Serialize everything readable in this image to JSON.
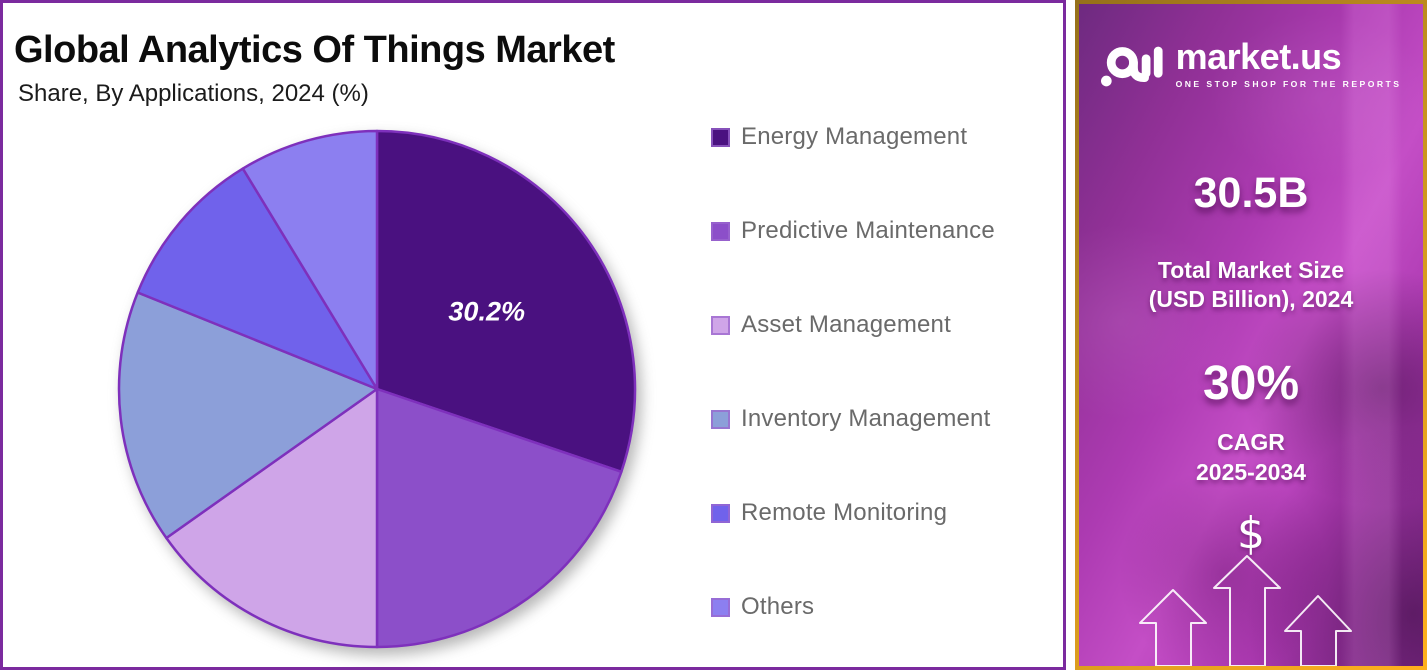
{
  "header": {
    "title": "Global Analytics Of Things Market",
    "subtitle": "Share, By Applications, 2024 (%)"
  },
  "chart_data": {
    "type": "pie",
    "title": "Global Analytics Of Things Market Share, By Applications, 2024 (%)",
    "unit": "%",
    "start_angle": "top",
    "direction": "clockwise",
    "legend_position": "right",
    "segments": [
      {
        "name": "Energy Management",
        "value": 30.2,
        "color": "#4A1180",
        "label": "30.2%"
      },
      {
        "name": "Predictive Maintenance",
        "value": 19.8,
        "color": "#8C4FC9",
        "label": ""
      },
      {
        "name": "Asset Management",
        "value": 15.2,
        "color": "#CFA5E8",
        "label": ""
      },
      {
        "name": "Inventory Management",
        "value": 15.9,
        "color": "#8C9FD9",
        "label": ""
      },
      {
        "name": "Remote Monitoring",
        "value": 10.2,
        "color": "#7062EB",
        "label": ""
      },
      {
        "name": "Others",
        "value": 8.7,
        "color": "#8C7FF0",
        "label": ""
      }
    ]
  },
  "brand": {
    "name": "market.us",
    "tagline": "ONE STOP SHOP FOR THE REPORTS"
  },
  "panel": {
    "market_size_value": "30.5B",
    "market_size_caption_line1": "Total Market Size",
    "market_size_caption_line2": "(USD Billion), 2024",
    "cagr_value": "30%",
    "cagr_label": "CAGR",
    "cagr_period": "2025-2034",
    "dollar_sign": "$"
  },
  "colors": {
    "chart_frame_border": "#7B2A9E",
    "panel_border_gold": "#D99A2B",
    "pie_stroke": "#7E30BC",
    "legend_text": "#6A6A6A",
    "pie_label_text": "#FFFFFF"
  }
}
